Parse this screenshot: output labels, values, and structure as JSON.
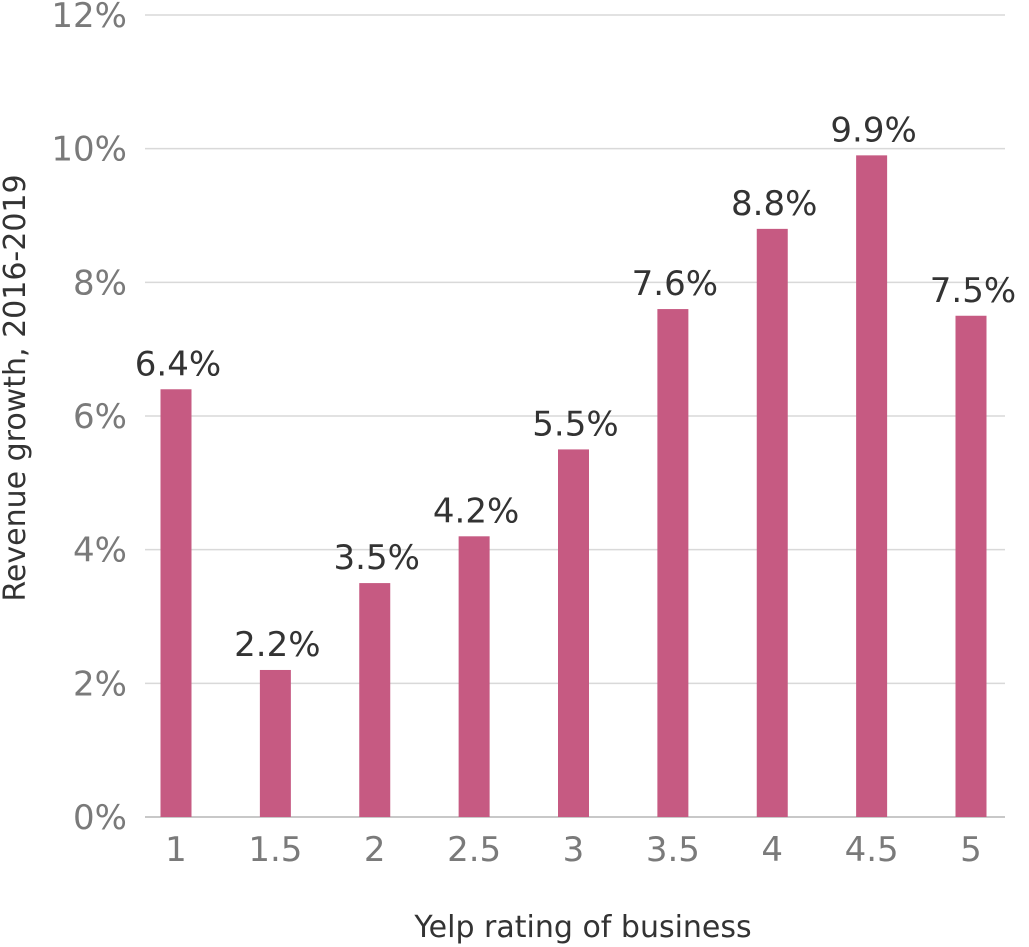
{
  "chart_data": {
    "type": "bar",
    "categories": [
      "1",
      "1.5",
      "2",
      "2.5",
      "3",
      "3.5",
      "4",
      "4.5",
      "5"
    ],
    "values": [
      6.4,
      2.2,
      3.5,
      4.2,
      5.5,
      7.6,
      8.8,
      9.9,
      7.5
    ],
    "data_labels": [
      "6.4%",
      "2.2%",
      "3.5%",
      "4.2%",
      "5.5%",
      "7.6%",
      "8.8%",
      "9.9%",
      "7.5%"
    ],
    "xlabel": "Yelp rating of business",
    "ylabel": "Revenue growth, 2016-2019",
    "ylim": [
      0,
      12
    ],
    "yticks": [
      0,
      2,
      4,
      6,
      8,
      10,
      12
    ],
    "ytick_labels": [
      "0%",
      "2%",
      "4%",
      "6%",
      "8%",
      "10%",
      "12%"
    ],
    "grid": true,
    "legend": "none",
    "bar_color": "#c65a82"
  }
}
